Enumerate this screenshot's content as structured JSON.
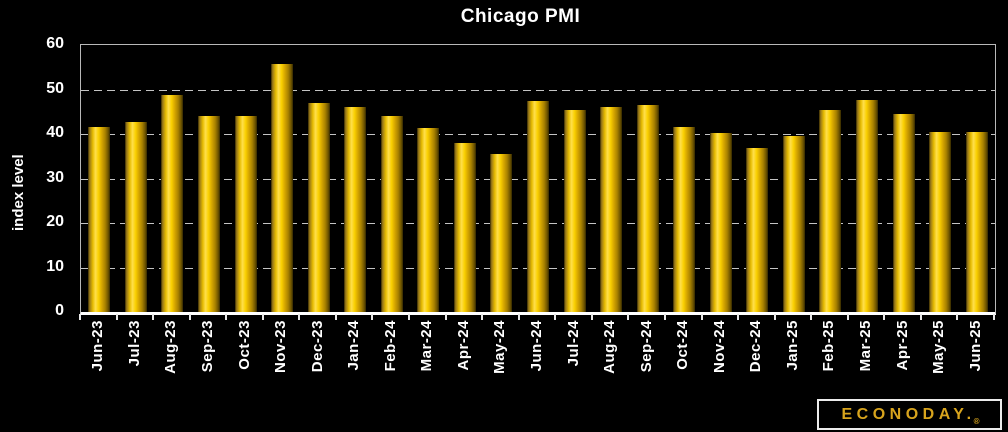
{
  "chart_data": {
    "type": "bar",
    "title": "Chicago PMI",
    "xlabel": "",
    "ylabel": "index level",
    "ylim": [
      0,
      60
    ],
    "yticks": [
      0,
      10,
      20,
      30,
      40,
      50,
      60
    ],
    "grid": "horizontal-dashed",
    "legend": "none",
    "background_color": "#000000",
    "bar_color": "#f5c400",
    "bar_gradient_highlight": "#ffdf4d",
    "text_color": "#ffffff",
    "gridline_color": "#c4c4c4",
    "categories": [
      "Jun-23",
      "Jul-23",
      "Aug-23",
      "Sep-23",
      "Oct-23",
      "Nov-23",
      "Dec-23",
      "Jan-24",
      "Feb-24",
      "Mar-24",
      "Apr-24",
      "May-24",
      "Jun-24",
      "Jul-24",
      "Aug-24",
      "Sep-24",
      "Oct-24",
      "Nov-24",
      "Dec-24",
      "Jan-25",
      "Feb-25",
      "Mar-25",
      "Apr-25",
      "May-25",
      "Jun-25"
    ],
    "values": [
      41.5,
      42.8,
      48.7,
      44.1,
      44.0,
      55.8,
      46.9,
      46.0,
      44.0,
      41.4,
      37.9,
      35.4,
      47.4,
      45.3,
      46.1,
      46.6,
      41.6,
      40.2,
      36.9,
      39.5,
      45.5,
      47.6,
      44.6,
      40.5,
      40.4
    ]
  },
  "logo": {
    "text": "ECONODAY.",
    "registered": "®",
    "color": "#d8a41d"
  }
}
